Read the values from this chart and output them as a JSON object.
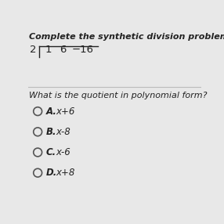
{
  "bg_color": "#e8e8e8",
  "title_text": "Complete the synthetic division problem below",
  "question": "What is the quotient in polynomial form?",
  "options": [
    {
      "label": "A.",
      "text": "x+6"
    },
    {
      "label": "B.",
      "text": "x-8"
    },
    {
      "label": "C.",
      "text": "x-6"
    },
    {
      "label": "D.",
      "text": "x+8"
    }
  ],
  "font_color": "#222222",
  "title_fontsize": 8.0,
  "question_fontsize": 8.0,
  "option_fontsize": 8.5,
  "division_fontsize": 9.5,
  "div_number": "2",
  "div_coeffs": [
    "1",
    "6",
    "−16"
  ]
}
